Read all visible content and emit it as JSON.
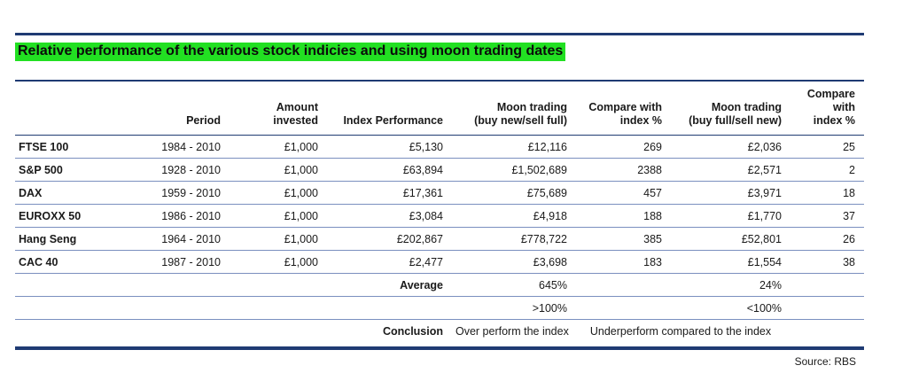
{
  "title": "Relative performance of the various stock indicies and using moon trading dates",
  "headers": {
    "c0": "",
    "c1": "Period",
    "c2a": "Amount",
    "c2b": "invested",
    "c3": "Index Performance",
    "c4a": "Moon trading",
    "c4b": "(buy new/sell full)",
    "c5a": "Compare with",
    "c5b": "index %",
    "c6a": "Moon trading",
    "c6b": "(buy full/sell new)",
    "c7a": "Compare with",
    "c7b": "index %"
  },
  "rows": [
    {
      "index": "FTSE 100",
      "period": "1984 - 2010",
      "invested": "£1,000",
      "performance": "£5,130",
      "moon1": "£12,116",
      "cmp1": "269",
      "moon2": "£2,036",
      "cmp2": "25"
    },
    {
      "index": "S&P 500",
      "period": "1928 - 2010",
      "invested": "£1,000",
      "performance": "£63,894",
      "moon1": "£1,502,689",
      "cmp1": "2388",
      "moon2": "£2,571",
      "cmp2": "2"
    },
    {
      "index": "DAX",
      "period": "1959 - 2010",
      "invested": "£1,000",
      "performance": "£17,361",
      "moon1": "£75,689",
      "cmp1": "457",
      "moon2": "£3,971",
      "cmp2": "18"
    },
    {
      "index": "EUROXX 50",
      "period": "1986 - 2010",
      "invested": "£1,000",
      "performance": "£3,084",
      "moon1": "£4,918",
      "cmp1": "188",
      "moon2": "£1,770",
      "cmp2": "37"
    },
    {
      "index": "Hang Seng",
      "period": "1964 - 2010",
      "invested": "£1,000",
      "performance": "£202,867",
      "moon1": "£778,722",
      "cmp1": "385",
      "moon2": "£52,801",
      "cmp2": "26"
    },
    {
      "index": "CAC 40",
      "period": "1987 - 2010",
      "invested": "£1,000",
      "performance": "£2,477",
      "moon1": "£3,698",
      "cmp1": "183",
      "moon2": "£1,554",
      "cmp2": "38"
    }
  ],
  "summary": {
    "average_label": "Average",
    "average_moon1": "645%",
    "average_moon2": "24%",
    "threshold_moon1": ">100%",
    "threshold_moon2": "<100%",
    "conclusion_label": "Conclusion",
    "conclusion_moon1": "Over perform the index",
    "conclusion_moon2": "Underperform compared to the index"
  },
  "source": "Source:  RBS",
  "colors": {
    "rule": "#1f3b73",
    "title_highlight": "#22e022"
  }
}
